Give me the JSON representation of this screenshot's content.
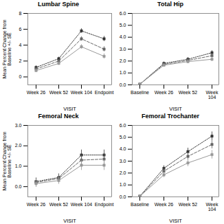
{
  "chart_data": [
    {
      "type": "line",
      "title": "Lumbar Spine",
      "xlabel": "VISIT",
      "ylabel": "Mean Percent Change from\nBaseline +/- SE",
      "categories": [
        "Week 26",
        "Week 52",
        "Week 104",
        "Endpoint"
      ],
      "ylim": [
        -1,
        8
      ],
      "yticks": [
        0,
        2,
        4,
        6,
        8
      ],
      "grid": false,
      "series": [
        {
          "color": "#333333",
          "line_style": "dotted",
          "marker": "square",
          "values": [
            1.2,
            2.3,
            5.8,
            4.8
          ],
          "errors": [
            0.2,
            0.2,
            0.28,
            0.32
          ]
        },
        {
          "color": "#666666",
          "line_style": "dashed",
          "marker": "square",
          "values": [
            1.0,
            2.0,
            4.8,
            3.5
          ],
          "errors": [
            0.2,
            0.2,
            0.28,
            0.32
          ]
        },
        {
          "color": "#999999",
          "line_style": "solid",
          "marker": "square",
          "values": [
            0.8,
            1.7,
            3.8,
            2.6
          ],
          "errors": [
            0.2,
            0.2,
            0.28,
            0.32
          ]
        }
      ]
    },
    {
      "type": "line",
      "title": "Total Hip",
      "xlabel": "VISIT",
      "categories": [
        "Baseline",
        "Week 26",
        "Week 52",
        "Week\n104"
      ],
      "ylim": [
        0,
        6
      ],
      "yticks": [
        0,
        1,
        2,
        3,
        4,
        5,
        6
      ],
      "grid": false,
      "series": [
        {
          "color": "#333333",
          "line_style": "dotted",
          "marker": "square",
          "values": [
            0.05,
            1.8,
            2.15,
            2.7
          ],
          "errors": [
            0.04,
            0.13,
            0.15,
            0.18
          ]
        },
        {
          "color": "#666666",
          "line_style": "dashed",
          "marker": "square",
          "values": [
            0.05,
            1.72,
            2.05,
            2.45
          ],
          "errors": [
            0.04,
            0.13,
            0.15,
            0.18
          ]
        },
        {
          "color": "#999999",
          "line_style": "solid",
          "marker": "square",
          "values": [
            0.05,
            1.65,
            1.95,
            2.15
          ],
          "errors": [
            0.04,
            0.13,
            0.15,
            0.18
          ]
        }
      ]
    },
    {
      "type": "line",
      "title": "Femoral Neck",
      "xlabel": "VISIT",
      "ylabel": "Mean Percent Change from\nBaseline +/- SE",
      "categories": [
        "Week 26",
        "Week 52",
        "Week 104",
        "Endpoint"
      ],
      "ylim": [
        -0.5,
        3
      ],
      "yticks": [
        0,
        1,
        2,
        3
      ],
      "grid": false,
      "series": [
        {
          "color": "#333333",
          "line_style": "dotted",
          "marker": "square",
          "values": [
            0.25,
            0.45,
            1.55,
            1.55
          ],
          "errors": [
            0.18,
            0.18,
            0.25,
            0.25
          ]
        },
        {
          "color": "#666666",
          "line_style": "dashed",
          "marker": "square",
          "values": [
            0.2,
            0.4,
            1.3,
            1.35
          ],
          "errors": [
            0.18,
            0.18,
            0.25,
            0.25
          ]
        },
        {
          "color": "#999999",
          "line_style": "solid",
          "marker": "square",
          "values": [
            0.15,
            0.3,
            1.05,
            1.05
          ],
          "errors": [
            0.18,
            0.18,
            0.25,
            0.25
          ]
        }
      ]
    },
    {
      "type": "line",
      "title": "Femoral Trochanter",
      "xlabel": "VISIT",
      "categories": [
        "Baseline",
        "Week 26",
        "Week 52",
        "Week\n104"
      ],
      "ylim": [
        0,
        6
      ],
      "yticks": [
        0,
        1,
        2,
        3,
        4,
        5,
        6
      ],
      "grid": false,
      "series": [
        {
          "color": "#333333",
          "line_style": "dotted",
          "marker": "square",
          "values": [
            0.05,
            2.4,
            3.8,
            5.1
          ],
          "errors": [
            0.04,
            0.22,
            0.3,
            0.36
          ]
        },
        {
          "color": "#666666",
          "line_style": "dashed",
          "marker": "square",
          "values": [
            0.05,
            2.15,
            3.4,
            4.4
          ],
          "errors": [
            0.04,
            0.22,
            0.3,
            0.36
          ]
        },
        {
          "color": "#999999",
          "line_style": "solid",
          "marker": "square",
          "values": [
            0.05,
            1.85,
            2.85,
            3.55
          ],
          "errors": [
            0.04,
            0.22,
            0.3,
            0.36
          ]
        }
      ]
    }
  ]
}
